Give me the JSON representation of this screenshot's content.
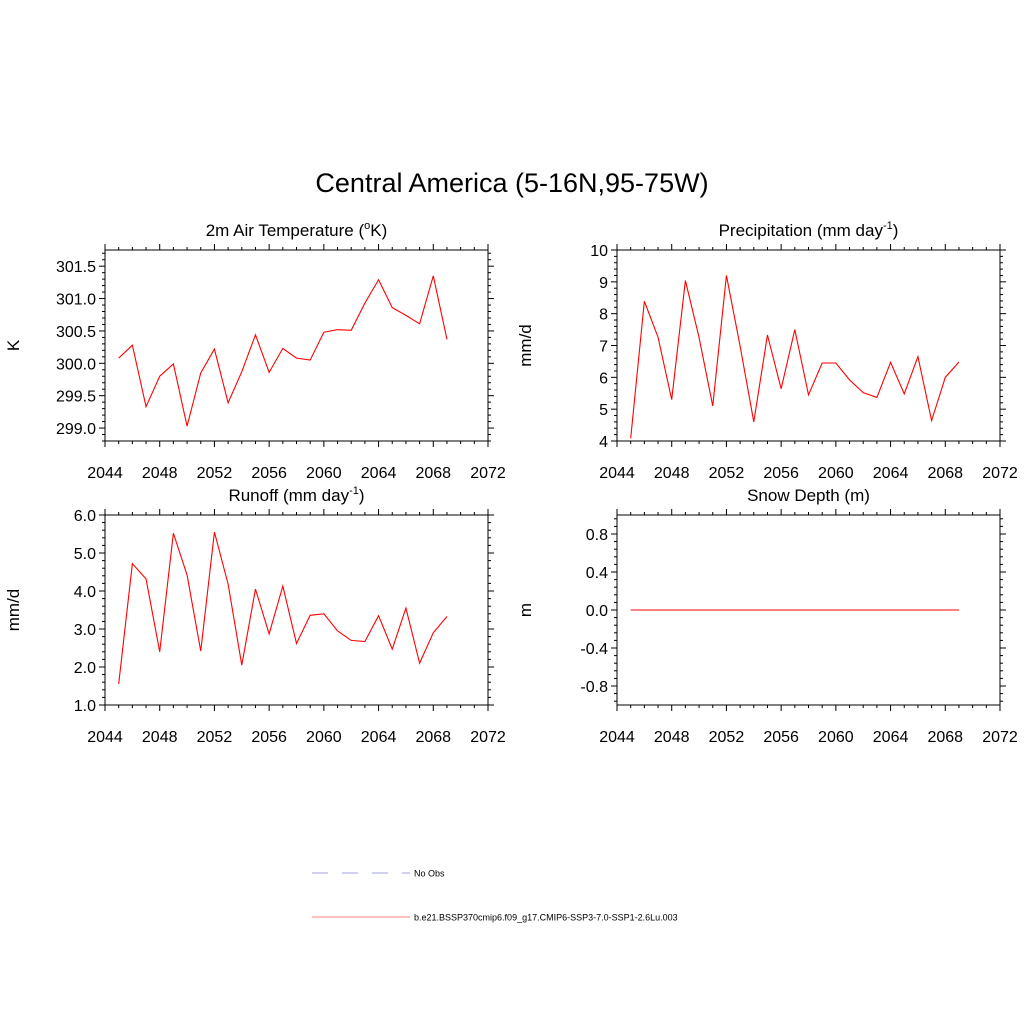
{
  "title": "Central America (5-16N,95-75W)",
  "chart_data": [
    {
      "type": "line",
      "title": "2m Air Temperature (°K)",
      "title_parts": [
        "2m Air Temperature (",
        "o",
        "K)"
      ],
      "ylabel": "K",
      "xlim": [
        2044,
        2072
      ],
      "xticks": [
        "2044",
        "2048",
        "2052",
        "2056",
        "2060",
        "2064",
        "2068",
        "2072"
      ],
      "ylim": [
        298.8,
        301.75
      ],
      "yticks": [
        "299.0",
        "299.5",
        "300.0",
        "300.5",
        "301.0",
        "301.5"
      ],
      "series": [
        {
          "color": "#ff0000",
          "x": [
            2045,
            2046,
            2047,
            2048,
            2049,
            2050,
            2051,
            2052,
            2053,
            2054,
            2055,
            2056,
            2057,
            2058,
            2059,
            2060,
            2061,
            2062,
            2063,
            2064,
            2065,
            2066,
            2067,
            2068,
            2069
          ],
          "values": [
            300.08,
            300.28,
            299.33,
            299.8,
            299.99,
            299.03,
            299.85,
            300.22,
            299.39,
            299.87,
            300.44,
            299.86,
            300.23,
            300.08,
            300.05,
            300.48,
            300.52,
            300.51,
            300.93,
            301.29,
            300.86,
            300.74,
            300.61,
            301.35,
            300.37
          ]
        }
      ]
    },
    {
      "type": "line",
      "title": "Precipitation (mm day⁻¹)",
      "title_parts": [
        "Precipitation (mm day",
        "-1",
        ")"
      ],
      "ylabel": "mm/d",
      "xlim": [
        2044,
        2072
      ],
      "xticks": [
        "2044",
        "2048",
        "2052",
        "2056",
        "2060",
        "2064",
        "2068",
        "2072"
      ],
      "ylim": [
        4,
        10
      ],
      "yticks": [
        "4",
        "5",
        "6",
        "7",
        "8",
        "9",
        "10"
      ],
      "series": [
        {
          "color": "#ff0000",
          "x": [
            2045,
            2046,
            2047,
            2048,
            2049,
            2050,
            2051,
            2052,
            2053,
            2054,
            2055,
            2056,
            2057,
            2058,
            2059,
            2060,
            2061,
            2062,
            2063,
            2064,
            2065,
            2066,
            2067,
            2068,
            2069
          ],
          "values": [
            4.08,
            8.39,
            7.26,
            5.3,
            9.04,
            7.25,
            5.1,
            9.2,
            6.98,
            4.6,
            7.33,
            5.64,
            7.5,
            5.45,
            6.45,
            6.45,
            5.92,
            5.52,
            5.37,
            6.47,
            5.48,
            6.65,
            4.64,
            6.0,
            6.48
          ]
        }
      ]
    },
    {
      "type": "line",
      "title": "Runoff (mm day⁻¹)",
      "title_parts": [
        "Runoff (mm day",
        "-1",
        ")"
      ],
      "ylabel": "mm/d",
      "xlim": [
        2044,
        2072
      ],
      "xticks": [
        "2044",
        "2048",
        "2052",
        "2056",
        "2060",
        "2064",
        "2068",
        "2072"
      ],
      "ylim": [
        1,
        6
      ],
      "yticks": [
        "1.0",
        "2.0",
        "3.0",
        "4.0",
        "5.0",
        "6.0"
      ],
      "series": [
        {
          "color": "#ff0000",
          "x": [
            2045,
            2046,
            2047,
            2048,
            2049,
            2050,
            2051,
            2052,
            2053,
            2054,
            2055,
            2056,
            2057,
            2058,
            2059,
            2060,
            2061,
            2062,
            2063,
            2064,
            2065,
            2066,
            2067,
            2068,
            2069
          ],
          "values": [
            1.55,
            4.72,
            4.32,
            2.4,
            5.52,
            4.42,
            2.42,
            5.55,
            4.18,
            2.05,
            4.05,
            2.87,
            4.13,
            2.62,
            3.36,
            3.4,
            2.95,
            2.7,
            2.67,
            3.35,
            2.47,
            3.55,
            2.1,
            2.9,
            3.33
          ]
        }
      ]
    },
    {
      "type": "line",
      "title": "Snow Depth (m)",
      "title_parts": [
        "Snow Depth (m)",
        "",
        ""
      ],
      "ylabel": "m",
      "xlim": [
        2044,
        2072
      ],
      "xticks": [
        "2044",
        "2048",
        "2052",
        "2056",
        "2060",
        "2064",
        "2068",
        "2072"
      ],
      "ylim": [
        -1,
        1
      ],
      "yticks": [
        "0.8",
        "0.4",
        "0.0",
        "-0.4",
        "-0.8"
      ],
      "series": [
        {
          "color": "#ff0000",
          "x": [
            2045,
            2046,
            2047,
            2048,
            2049,
            2050,
            2051,
            2052,
            2053,
            2054,
            2055,
            2056,
            2057,
            2058,
            2059,
            2060,
            2061,
            2062,
            2063,
            2064,
            2065,
            2066,
            2067,
            2068,
            2069
          ],
          "values": [
            0,
            0,
            0,
            0,
            0,
            0,
            0,
            0,
            0,
            0,
            0,
            0,
            0,
            0,
            0,
            0,
            0,
            0,
            0,
            0,
            0,
            0,
            0,
            0,
            0
          ]
        }
      ]
    }
  ],
  "legend": [
    {
      "label": "No Obs",
      "style": "dashed",
      "color": "#b3b3e6"
    },
    {
      "label": "b.e21.BSSP370cmip6.f09_g17.CMIP6-SSP3-7.0-SSP1-2.6Lu.003",
      "style": "solid",
      "color": "#ff9999"
    }
  ]
}
